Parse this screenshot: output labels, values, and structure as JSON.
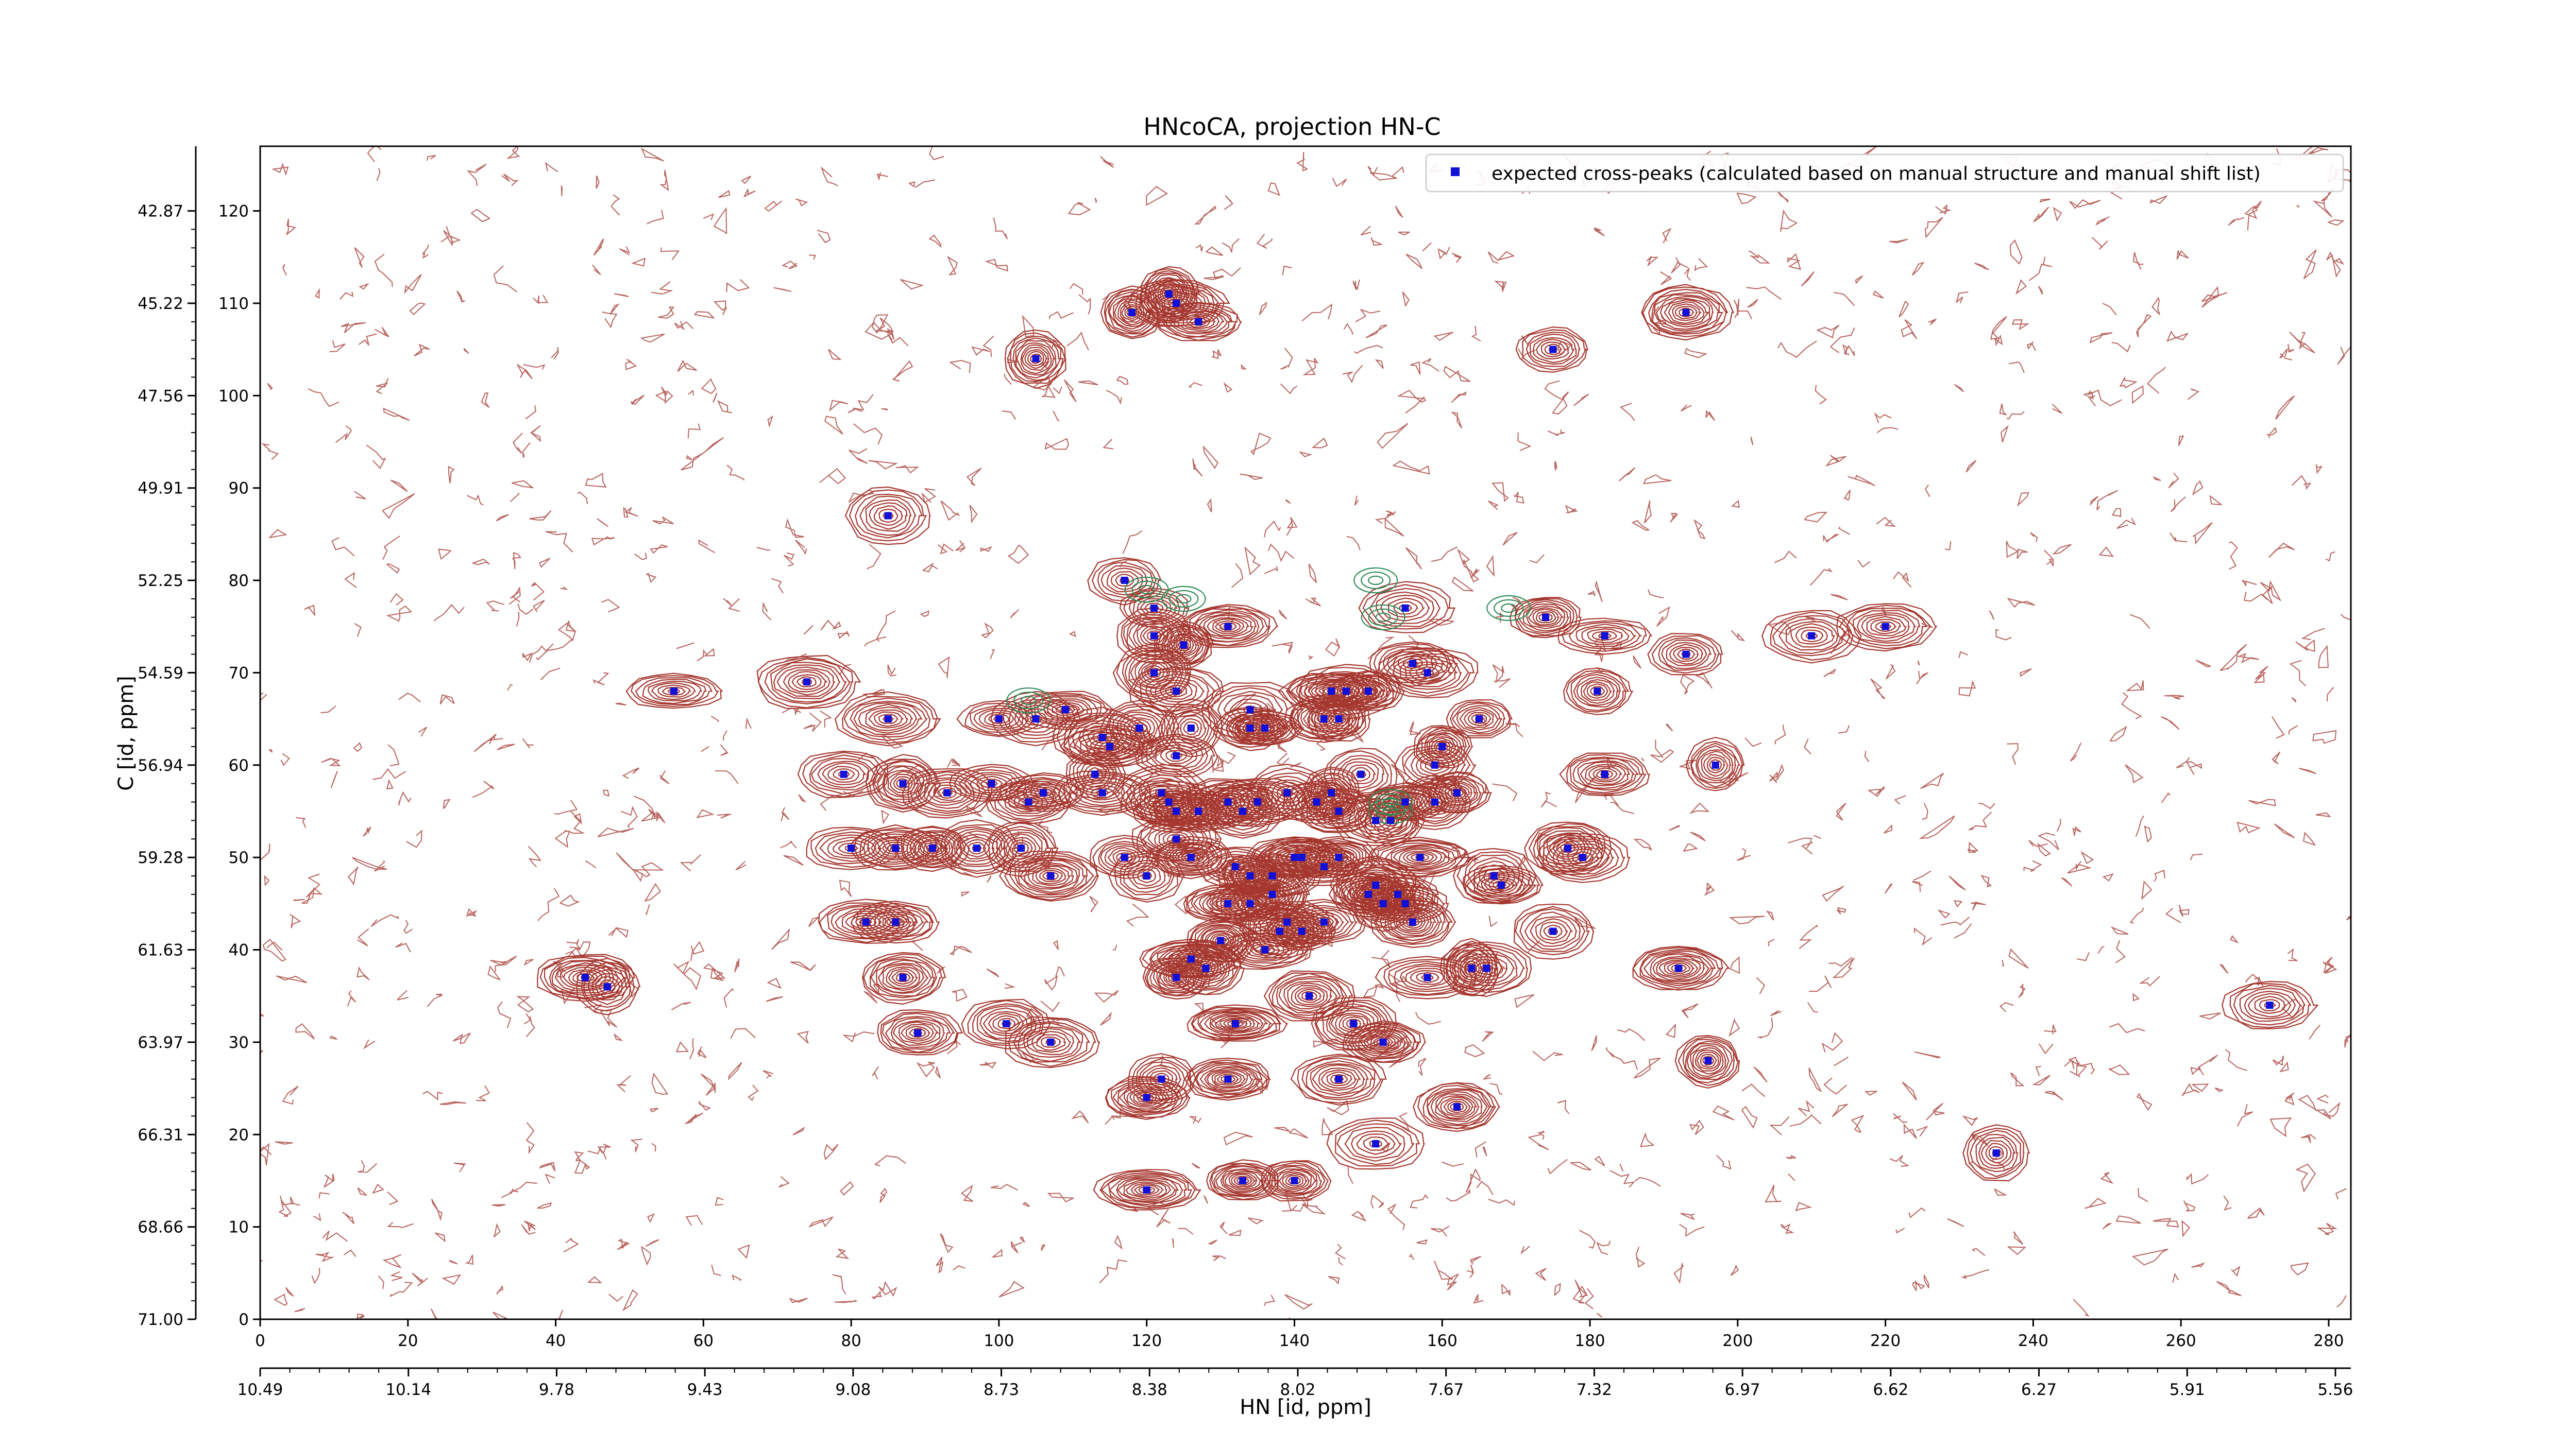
{
  "chart_data": {
    "type": "scatter",
    "title": "HNcoCA, projection HN-C",
    "xlabel": "HN [id, ppm]",
    "ylabel": "C [id, ppm]",
    "xlim": [
      0,
      283
    ],
    "ylim": [
      0,
      127
    ],
    "x_ticks": [
      0,
      20,
      40,
      60,
      80,
      100,
      120,
      140,
      160,
      180,
      200,
      220,
      240,
      260,
      280
    ],
    "y_ticks": [
      0,
      10,
      20,
      30,
      40,
      50,
      60,
      70,
      80,
      90,
      100,
      110,
      120
    ],
    "x_ppm_labels": [
      "10.49",
      "10.14",
      "9.78",
      "9.43",
      "9.08",
      "8.73",
      "8.38",
      "8.02",
      "7.67",
      "7.32",
      "6.97",
      "6.62",
      "6.27",
      "5.91",
      "5.56"
    ],
    "y_ppm_labels": [
      "71.00",
      "68.66",
      "66.31",
      "63.97",
      "61.63",
      "59.28",
      "56.94",
      "54.59",
      "52.25",
      "49.91",
      "47.56",
      "45.22",
      "42.87"
    ],
    "legend": {
      "label": "expected cross-peaks (calculated based on manual structure and manual shift list)",
      "position": "top-right",
      "color": "#1010d8"
    },
    "colors": {
      "positive_contours": "#a5372f",
      "negative_contours": "#2e8b57",
      "peaks": "#1010d8"
    },
    "series": [
      {
        "name": "expected cross-peaks (calculated based on manual structure and manual shift list)",
        "points": [
          [
            118,
            109
          ],
          [
            123,
            111
          ],
          [
            124,
            110
          ],
          [
            127,
            108
          ],
          [
            105,
            104
          ],
          [
            175,
            105
          ],
          [
            193,
            109
          ],
          [
            85,
            87
          ],
          [
            56,
            68
          ],
          [
            74,
            69
          ],
          [
            44,
            37
          ],
          [
            47,
            36
          ],
          [
            117,
            80
          ],
          [
            121,
            77
          ],
          [
            121,
            74
          ],
          [
            125,
            73
          ],
          [
            131,
            75
          ],
          [
            155,
            77
          ],
          [
            174,
            76
          ],
          [
            182,
            74
          ],
          [
            193,
            72
          ],
          [
            210,
            74
          ],
          [
            220,
            75
          ],
          [
            85,
            65
          ],
          [
            100,
            65
          ],
          [
            105,
            65
          ],
          [
            109,
            66
          ],
          [
            114,
            63
          ],
          [
            115,
            62
          ],
          [
            119,
            64
          ],
          [
            121,
            70
          ],
          [
            124,
            68
          ],
          [
            124,
            61
          ],
          [
            126,
            64
          ],
          [
            134,
            66
          ],
          [
            134,
            64
          ],
          [
            136,
            64
          ],
          [
            145,
            68
          ],
          [
            147,
            68
          ],
          [
            150,
            68
          ],
          [
            144,
            65
          ],
          [
            146,
            65
          ],
          [
            156,
            71
          ],
          [
            158,
            70
          ],
          [
            181,
            68
          ],
          [
            182,
            59
          ],
          [
            197,
            60
          ],
          [
            165,
            65
          ],
          [
            160,
            62
          ],
          [
            159,
            60
          ],
          [
            79,
            59
          ],
          [
            87,
            58
          ],
          [
            93,
            57
          ],
          [
            99,
            58
          ],
          [
            104,
            56
          ],
          [
            106,
            57
          ],
          [
            113,
            59
          ],
          [
            114,
            57
          ],
          [
            122,
            57
          ],
          [
            123,
            56
          ],
          [
            124,
            55
          ],
          [
            127,
            55
          ],
          [
            131,
            56
          ],
          [
            133,
            55
          ],
          [
            135,
            56
          ],
          [
            139,
            57
          ],
          [
            143,
            56
          ],
          [
            145,
            57
          ],
          [
            146,
            55
          ],
          [
            149,
            59
          ],
          [
            151,
            54
          ],
          [
            153,
            54
          ],
          [
            155,
            56
          ],
          [
            159,
            56
          ],
          [
            80,
            51
          ],
          [
            86,
            51
          ],
          [
            91,
            51
          ],
          [
            97,
            51
          ],
          [
            103,
            51
          ],
          [
            117,
            50
          ],
          [
            120,
            48
          ],
          [
            124,
            52
          ],
          [
            126,
            50
          ],
          [
            132,
            49
          ],
          [
            134,
            48
          ],
          [
            137,
            48
          ],
          [
            140,
            50
          ],
          [
            141,
            50
          ],
          [
            144,
            49
          ],
          [
            146,
            50
          ],
          [
            150,
            46
          ],
          [
            151,
            47
          ],
          [
            152,
            45
          ],
          [
            154,
            46
          ],
          [
            155,
            45
          ],
          [
            157,
            50
          ],
          [
            162,
            57
          ],
          [
            167,
            48
          ],
          [
            168,
            47
          ],
          [
            177,
            51
          ],
          [
            179,
            50
          ],
          [
            82,
            43
          ],
          [
            86,
            43
          ],
          [
            107,
            48
          ],
          [
            131,
            45
          ],
          [
            134,
            45
          ],
          [
            137,
            46
          ],
          [
            139,
            43
          ],
          [
            141,
            42
          ],
          [
            136,
            40
          ],
          [
            138,
            42
          ],
          [
            124,
            37
          ],
          [
            126,
            39
          ],
          [
            128,
            38
          ],
          [
            130,
            41
          ],
          [
            144,
            43
          ],
          [
            156,
            43
          ],
          [
            158,
            37
          ],
          [
            164,
            38
          ],
          [
            166,
            38
          ],
          [
            175,
            42
          ],
          [
            192,
            38
          ],
          [
            87,
            37
          ],
          [
            89,
            31
          ],
          [
            101,
            32
          ],
          [
            107,
            30
          ],
          [
            132,
            32
          ],
          [
            142,
            35
          ],
          [
            148,
            32
          ],
          [
            152,
            30
          ],
          [
            122,
            26
          ],
          [
            120,
            24
          ],
          [
            131,
            26
          ],
          [
            146,
            26
          ],
          [
            162,
            23
          ],
          [
            151,
            19
          ],
          [
            120,
            14
          ],
          [
            133,
            15
          ],
          [
            140,
            15
          ],
          [
            196,
            28
          ],
          [
            235,
            18
          ],
          [
            272,
            34
          ]
        ]
      }
    ]
  }
}
